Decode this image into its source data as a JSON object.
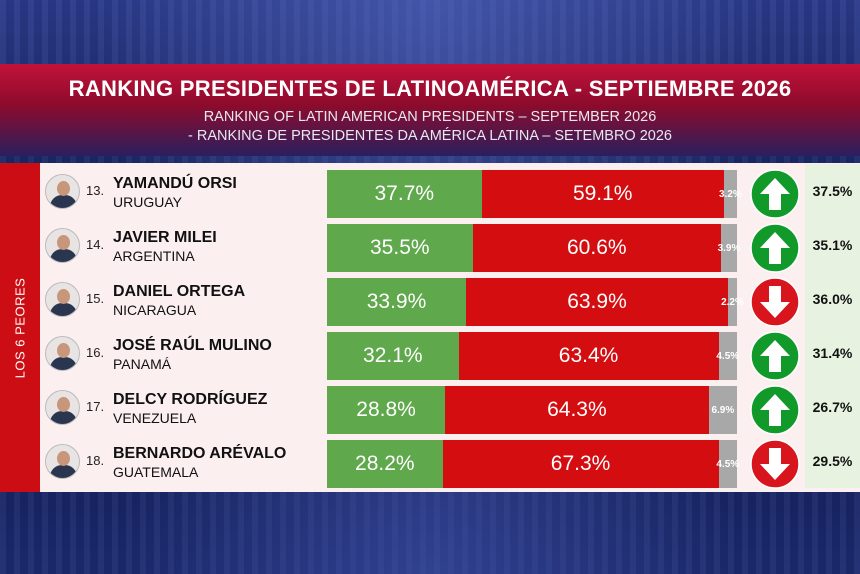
{
  "header": {
    "title": "RANKING PRESIDENTES DE LATINOAMÉRICA - SEPTIEMBRE 2026",
    "subtitle_en": "RANKING OF LATIN AMERICAN PRESIDENTS – SEPTEMBER 2026",
    "subtitle_pt": "- RANKING DE PRESIDENTES DA AMÉRICA LATINA – SETEMBRO 2026"
  },
  "side_label": "LOS 6 PEORES",
  "colors": {
    "approve": "#5fa84b",
    "disapprove": "#d40d10",
    "undecided": "#a8a8a8",
    "up": "#119a2a",
    "down": "#d8141c"
  },
  "chart_data": {
    "type": "bar",
    "stacked": true,
    "title": "RANKING PRESIDENTES DE LATINOAMÉRICA - SEPTIEMBRE 2026",
    "categories": [
      "YAMANDÚ ORSI",
      "JAVIER MILEI",
      "DANIEL ORTEGA",
      "JOSÉ RAÚL MULINO",
      "DELCY RODRÍGUEZ",
      "BERNARDO ARÉVALO"
    ],
    "series": [
      {
        "values": [
          37.7,
          35.5,
          33.9,
          32.1,
          28.8,
          28.2
        ]
      },
      {
        "values": [
          59.1,
          60.6,
          63.9,
          63.4,
          64.3,
          67.3
        ]
      },
      {
        "values": [
          3.2,
          3.9,
          2.2,
          4.5,
          6.9,
          4.5
        ]
      }
    ],
    "rows": [
      {
        "rank": "13.",
        "name": "YAMANDÚ ORSI",
        "country": "URUGUAY",
        "approve": 37.7,
        "disapprove": 59.1,
        "other": 3.2,
        "approve_label": "37.7%",
        "disapprove_label": "59.1%",
        "other_label": "3.2%",
        "trend": "up",
        "previous": "37.5%"
      },
      {
        "rank": "14.",
        "name": "JAVIER MILEI",
        "country": "ARGENTINA",
        "approve": 35.5,
        "disapprove": 60.6,
        "other": 3.9,
        "approve_label": "35.5%",
        "disapprove_label": "60.6%",
        "other_label": "3.9%",
        "trend": "up",
        "previous": "35.1%"
      },
      {
        "rank": "15.",
        "name": "DANIEL ORTEGA",
        "country": "NICARAGUA",
        "approve": 33.9,
        "disapprove": 63.9,
        "other": 2.2,
        "approve_label": "33.9%",
        "disapprove_label": "63.9%",
        "other_label": "2.2%",
        "trend": "down",
        "previous": "36.0%"
      },
      {
        "rank": "16.",
        "name": "JOSÉ RAÚL MULINO",
        "country": "PANAMÁ",
        "approve": 32.1,
        "disapprove": 63.4,
        "other": 4.5,
        "approve_label": "32.1%",
        "disapprove_label": "63.4%",
        "other_label": "4.5%",
        "trend": "up",
        "previous": "31.4%"
      },
      {
        "rank": "17.",
        "name": "DELCY RODRÍGUEZ",
        "country": "VENEZUELA",
        "approve": 28.8,
        "disapprove": 64.3,
        "other": 6.9,
        "approve_label": "28.8%",
        "disapprove_label": "64.3%",
        "other_label": "6.9%",
        "trend": "up",
        "previous": "26.7%"
      },
      {
        "rank": "18.",
        "name": "BERNARDO ARÉVALO",
        "country": "GUATEMALA",
        "approve": 28.2,
        "disapprove": 67.3,
        "other": 4.5,
        "approve_label": "28.2%",
        "disapprove_label": "67.3%",
        "other_label": "4.5%",
        "trend": "down",
        "previous": "29.5%"
      }
    ]
  }
}
